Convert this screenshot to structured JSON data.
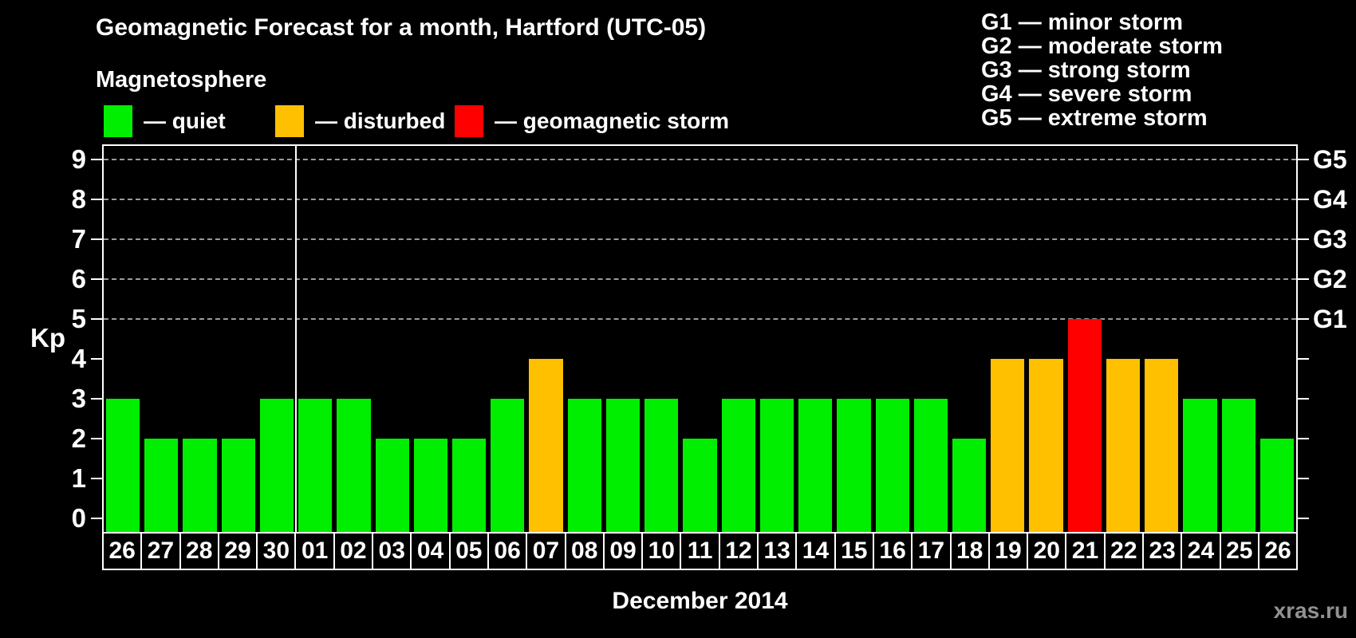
{
  "title": "Geomagnetic Forecast for a month, Hartford (UTC-05)",
  "subtitle": "Magnetosphere",
  "legend": {
    "items": [
      {
        "label": "— quiet",
        "status": "quiet",
        "color": "#00ef00"
      },
      {
        "label": "— disturbed",
        "status": "disturbed",
        "color": "#ffc000"
      },
      {
        "label": "— geomagnetic storm",
        "status": "storm",
        "color": "#ff0000"
      }
    ]
  },
  "g_legend": {
    "items": [
      "G1 — minor storm",
      "G2 — moderate storm",
      "G3 — strong storm",
      "G4 — severe storm",
      "G5 — extreme storm"
    ]
  },
  "axis": {
    "left_label": "Kp",
    "left_ticks": [
      "0",
      "1",
      "2",
      "3",
      "4",
      "5",
      "6",
      "7",
      "8",
      "9"
    ],
    "right_labels": [
      {
        "text": "G1",
        "kp": 5
      },
      {
        "text": "G2",
        "kp": 6
      },
      {
        "text": "G3",
        "kp": 7
      },
      {
        "text": "G4",
        "kp": 8
      },
      {
        "text": "G5",
        "kp": 9
      }
    ]
  },
  "x_axis_label": "December 2014",
  "watermark": "xras.ru",
  "chart_data": {
    "type": "bar",
    "title": "Geomagnetic Forecast for a month, Hartford (UTC-05)",
    "subtitle": "Magnetosphere",
    "categories": [
      "26",
      "27",
      "28",
      "29",
      "30",
      "01",
      "02",
      "03",
      "04",
      "05",
      "06",
      "07",
      "08",
      "09",
      "10",
      "11",
      "12",
      "13",
      "14",
      "15",
      "16",
      "17",
      "18",
      "19",
      "20",
      "21",
      "22",
      "23",
      "24",
      "25",
      "26"
    ],
    "values": [
      3,
      2,
      2,
      2,
      3,
      3,
      3,
      2,
      2,
      2,
      3,
      4,
      3,
      3,
      3,
      2,
      3,
      3,
      3,
      3,
      3,
      3,
      2,
      4,
      4,
      5,
      4,
      4,
      3,
      3,
      2
    ],
    "statuses": [
      "quiet",
      "quiet",
      "quiet",
      "quiet",
      "quiet",
      "quiet",
      "quiet",
      "quiet",
      "quiet",
      "quiet",
      "quiet",
      "disturbed",
      "quiet",
      "quiet",
      "quiet",
      "quiet",
      "quiet",
      "quiet",
      "quiet",
      "quiet",
      "quiet",
      "quiet",
      "quiet",
      "disturbed",
      "disturbed",
      "storm",
      "disturbed",
      "disturbed",
      "quiet",
      "quiet",
      "quiet"
    ],
    "status_colors": {
      "quiet": "#00ef00",
      "disturbed": "#ffc000",
      "storm": "#ff0000"
    },
    "status_meaning": {
      "quiet": "quiet",
      "disturbed": "disturbed",
      "storm": "geomagnetic storm"
    },
    "xlabel": "December 2014",
    "ylabel": "Kp",
    "ylim": [
      0,
      9
    ],
    "grid_kp_levels": [
      5,
      6,
      7,
      8,
      9
    ],
    "right_axis_labels": {
      "G1": 5,
      "G2": 6,
      "G3": 7,
      "G4": 8,
      "G5": 9
    },
    "month_separator_after_index": 4,
    "legend_position": "top",
    "grid": "dashed-horizontal"
  }
}
